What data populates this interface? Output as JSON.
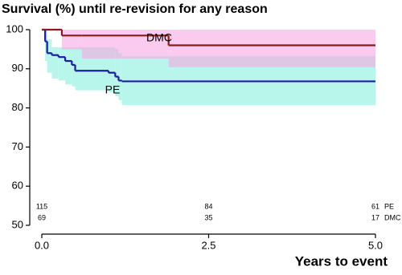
{
  "chart_data": {
    "type": "step",
    "title": "Survival (%) until re-revision for any reason",
    "x_label": "Years to event",
    "xlim": [
      0,
      5
    ],
    "ylim": [
      50,
      100
    ],
    "xticks": [
      {
        "value": 0,
        "label": "0.0"
      },
      2.5,
      {
        "value": 5,
        "label": "5.0"
      }
    ],
    "yticks": [
      50,
      60,
      70,
      80,
      90,
      100
    ],
    "series": [
      {
        "name": "PE",
        "color": "#1c1ca0",
        "band_color": "#b8f6ec",
        "x": [
          0,
          0.05,
          0.08,
          0.15,
          0.25,
          0.35,
          0.45,
          0.5,
          1.0,
          1.1,
          1.15,
          1.2,
          5
        ],
        "values": [
          100,
          97,
          94,
          93.5,
          93,
          92,
          91,
          89.5,
          89,
          88,
          87,
          86.8,
          86.8
        ],
        "upper": [
          100,
          100,
          97.5,
          95.5,
          95.5,
          95.5,
          95.5,
          95.5,
          95.5,
          95,
          94,
          93.2,
          93.2
        ],
        "lower": [
          100,
          92,
          89,
          87.5,
          87,
          86,
          85.5,
          84.5,
          84,
          83,
          82,
          80.7,
          80.7
        ]
      },
      {
        "name": "DMC",
        "color": "#8b1a1a",
        "band_color": "#f6a8e2",
        "x": [
          0,
          0.3,
          0.6,
          1.9,
          5
        ],
        "values": [
          100,
          98.5,
          98.5,
          96,
          96
        ],
        "upper": [
          100,
          100,
          100,
          100,
          100
        ],
        "lower": [
          100,
          95,
          92.6,
          90.4,
          90.4
        ]
      }
    ],
    "risk_table": [
      {
        "name": "PE",
        "counts": [
          115,
          84,
          61
        ]
      },
      {
        "name": "DMC",
        "counts": [
          69,
          35,
          17
        ]
      }
    ]
  }
}
